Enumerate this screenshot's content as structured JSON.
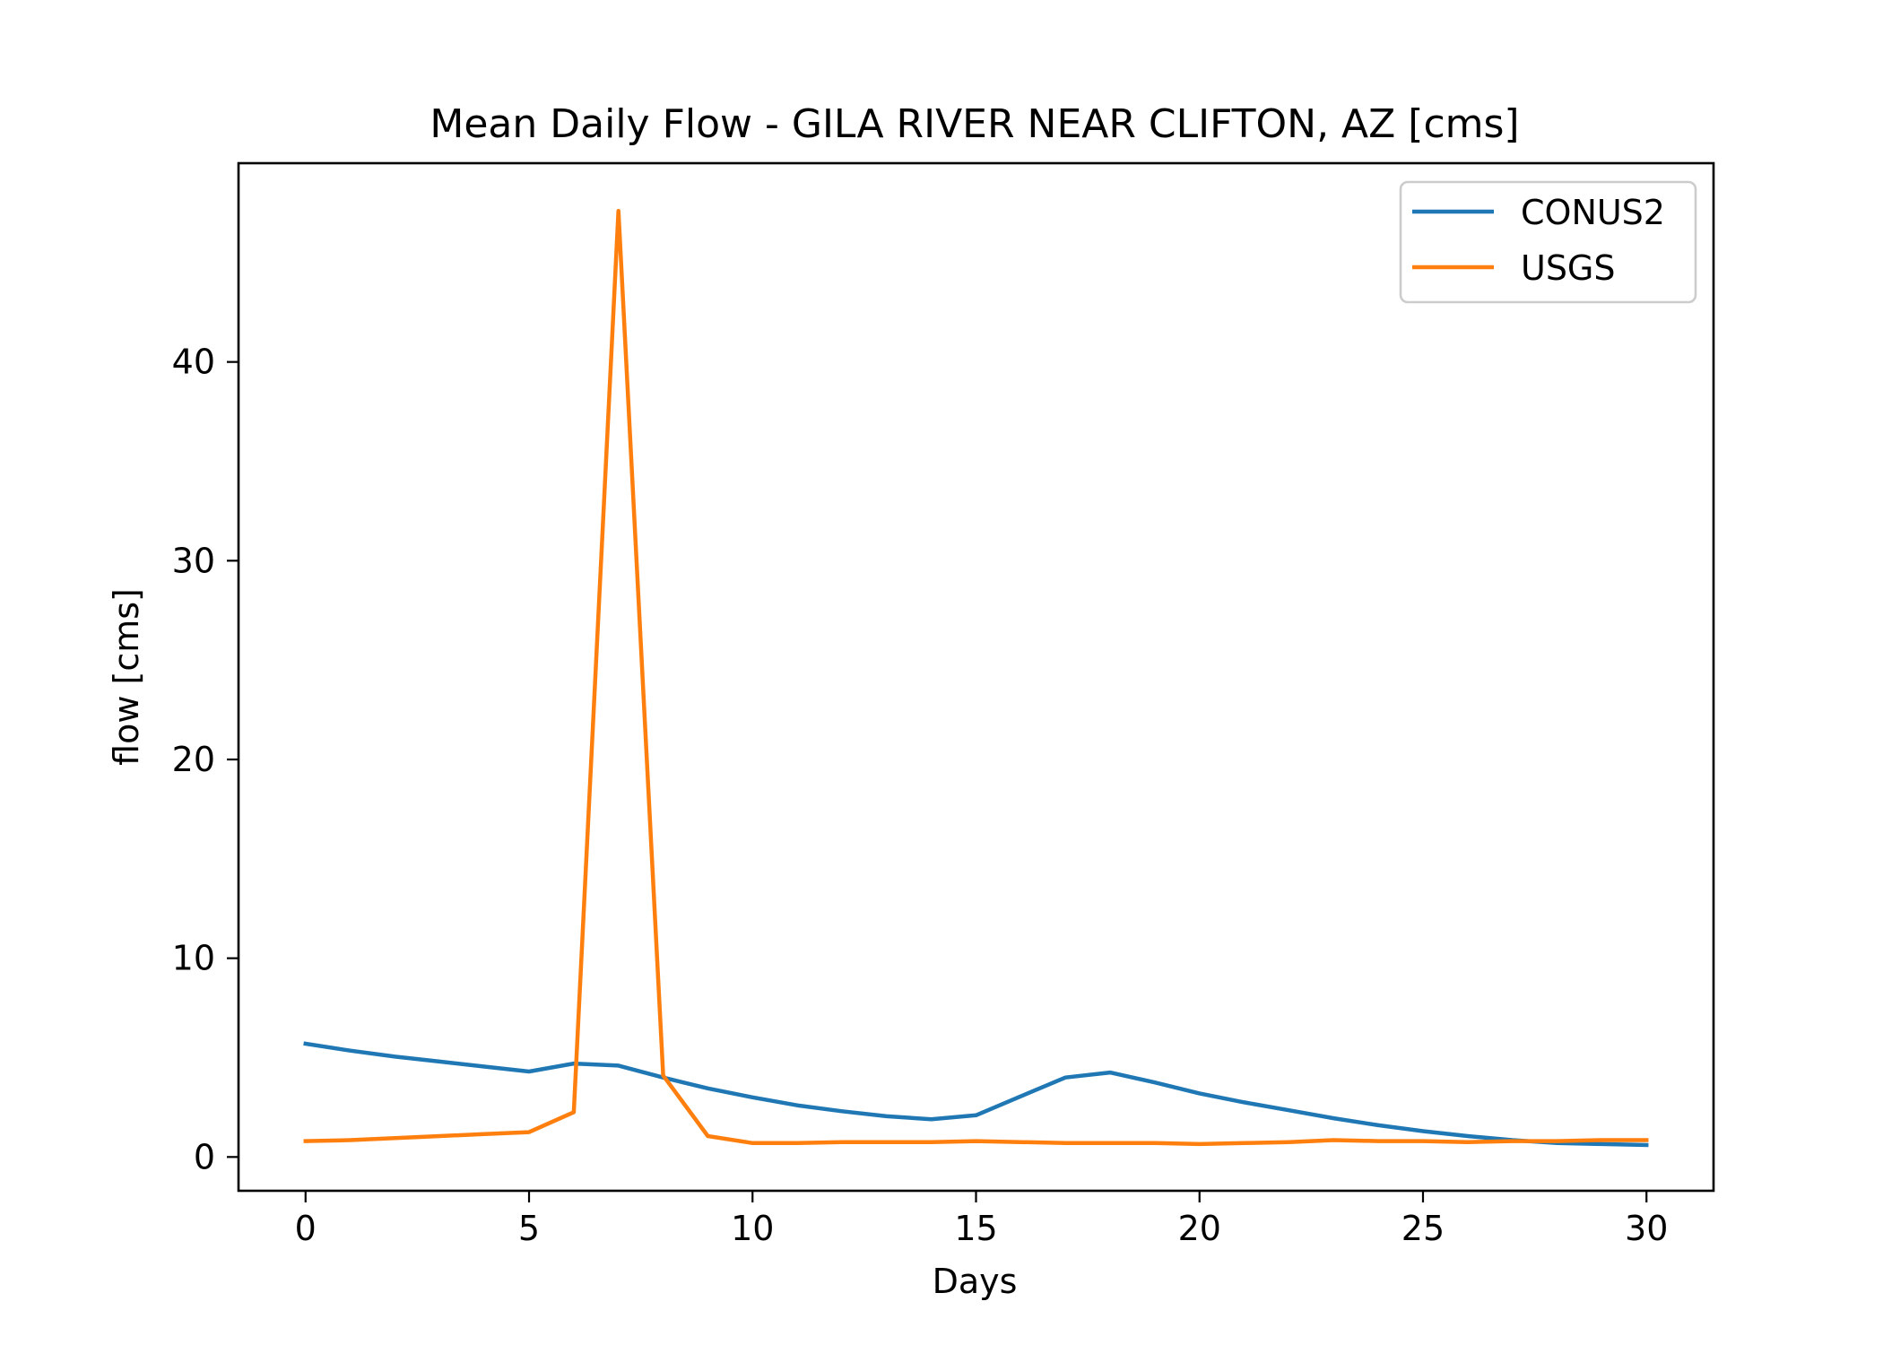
{
  "chart_data": {
    "type": "line",
    "title": "Mean Daily Flow - GILA RIVER NEAR CLIFTON, AZ [cms]",
    "xlabel": "Days",
    "ylabel": "flow [cms]",
    "xlim": [
      -1.5,
      31.5
    ],
    "ylim": [
      -1.7,
      50
    ],
    "xticks": [
      0,
      5,
      10,
      15,
      20,
      25,
      30
    ],
    "xtick_labels": [
      "0",
      "5",
      "10",
      "15",
      "20",
      "25",
      "30"
    ],
    "yticks": [
      0,
      10,
      20,
      30,
      40
    ],
    "ytick_labels": [
      "0",
      "10",
      "20",
      "30",
      "40"
    ],
    "grid": false,
    "legend_position": "upper right",
    "x": [
      0,
      1,
      2,
      3,
      4,
      5,
      6,
      7,
      8,
      9,
      10,
      11,
      12,
      13,
      14,
      15,
      16,
      17,
      18,
      19,
      20,
      21,
      22,
      23,
      24,
      25,
      26,
      27,
      28,
      29,
      30
    ],
    "series": [
      {
        "name": "CONUS2",
        "color": "#1f77b4",
        "values": [
          5.7,
          5.35,
          5.05,
          4.8,
          4.55,
          4.3,
          4.7,
          4.6,
          4.0,
          3.45,
          3.0,
          2.6,
          2.3,
          2.05,
          1.9,
          2.1,
          3.05,
          4.0,
          4.25,
          3.75,
          3.2,
          2.75,
          2.35,
          1.95,
          1.6,
          1.3,
          1.05,
          0.85,
          0.7,
          0.65,
          0.6
        ]
      },
      {
        "name": "USGS",
        "color": "#ff7f0e",
        "values": [
          0.8,
          0.85,
          0.95,
          1.05,
          1.15,
          1.25,
          2.25,
          47.6,
          4.1,
          1.05,
          0.7,
          0.7,
          0.75,
          0.75,
          0.75,
          0.8,
          0.75,
          0.7,
          0.7,
          0.7,
          0.65,
          0.7,
          0.75,
          0.85,
          0.8,
          0.8,
          0.75,
          0.8,
          0.8,
          0.85,
          0.85
        ]
      }
    ]
  }
}
